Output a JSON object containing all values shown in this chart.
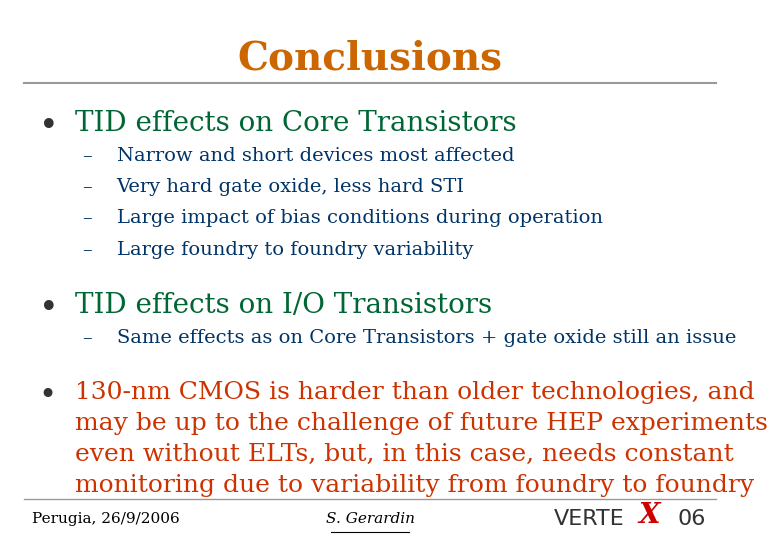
{
  "title": "Conclusions",
  "title_color": "#CC6600",
  "title_fontsize": 28,
  "bg_color": "#FFFFFF",
  "bullet1_text": "TID effects on Core Transistors",
  "bullet1_color": "#006633",
  "bullet1_fontsize": 20,
  "sub1": [
    "Narrow and short devices most affected",
    "Very hard gate oxide, less hard STI",
    "Large impact of bias conditions during operation",
    "Large foundry to foundry variability"
  ],
  "sub1_color": "#003366",
  "sub1_fontsize": 14,
  "bullet2_text": "TID effects on I/O Transistors",
  "bullet2_color": "#006633",
  "bullet2_fontsize": 20,
  "sub2": [
    "Same effects as on Core Transistors + gate oxide still an issue"
  ],
  "sub2_color": "#003366",
  "sub2_fontsize": 14,
  "bullet3_text": "130-nm CMOS is harder than older technologies, and\nmay be up to the challenge of future HEP experiments\neven without ELTs, but, in this case, needs constant\nmonitoring due to variability from foundry to foundry",
  "bullet3_color": "#CC3300",
  "bullet3_fontsize": 18,
  "footer_left": "Perugia, 26/9/2006",
  "footer_center": "S. Gerardin",
  "footer_color": "#000000",
  "footer_fontsize": 11,
  "logo_verte": "VERTE",
  "logo_x": "X",
  "logo_06": "06",
  "logo_color": "#333333",
  "logo_x_color": "#CC0000",
  "logo_fontsize": 14,
  "divider_color": "#999999",
  "bullet_color": "#333333"
}
